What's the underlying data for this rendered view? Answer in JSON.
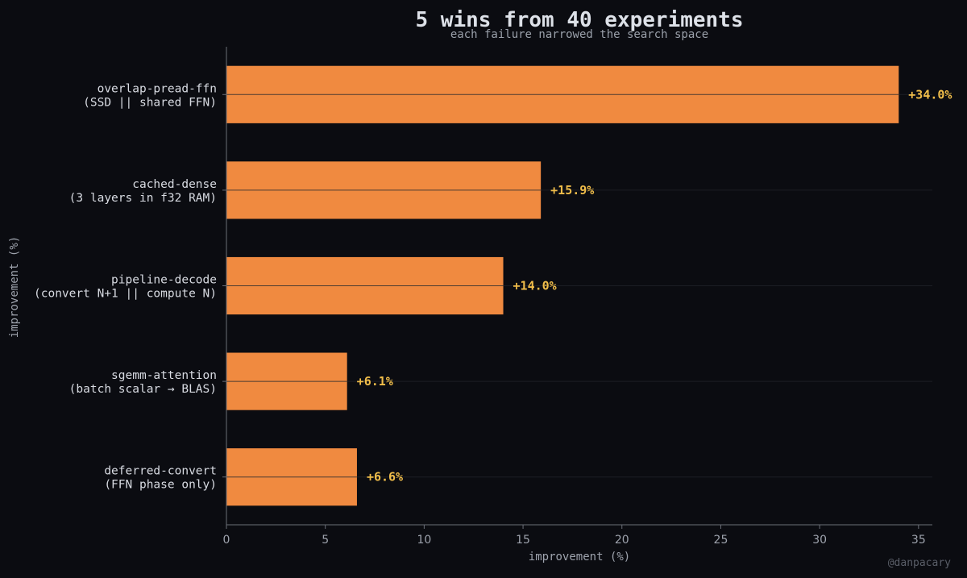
{
  "chart_data": {
    "type": "bar",
    "orientation": "horizontal",
    "title": "5 wins from 40 experiments",
    "subtitle": "each failure narrowed the search space",
    "xlabel": "improvement (%)",
    "ylabel": "improvement (%)",
    "xlim": [
      0,
      35.7
    ],
    "xticks": [
      "0",
      "5",
      "10",
      "15",
      "20",
      "25",
      "30",
      "35"
    ],
    "categories": [
      [
        "overlap-pread-ffn",
        "(SSD || shared FFN)"
      ],
      [
        "cached-dense",
        "(3 layers in f32 RAM)"
      ],
      [
        "pipeline-decode",
        "(convert N+1 || compute N)"
      ],
      [
        "sgemm-attention",
        "(batch scalar → BLAS)"
      ],
      [
        "deferred-convert",
        "(FFN phase only)"
      ]
    ],
    "values": [
      34.0,
      15.9,
      14.0,
      6.1,
      6.6
    ],
    "value_labels": [
      "+34.0%",
      "+15.9%",
      "+14.0%",
      "+6.1%",
      "+6.6%"
    ],
    "grid": "horizontal lines at each category",
    "colors": {
      "background": "#0b0c11",
      "bar": "#f08a40",
      "value_label": "#f0bd4a",
      "text": "#d8dbe2",
      "muted": "#9ea3ad"
    },
    "watermark": "@danpacary"
  }
}
